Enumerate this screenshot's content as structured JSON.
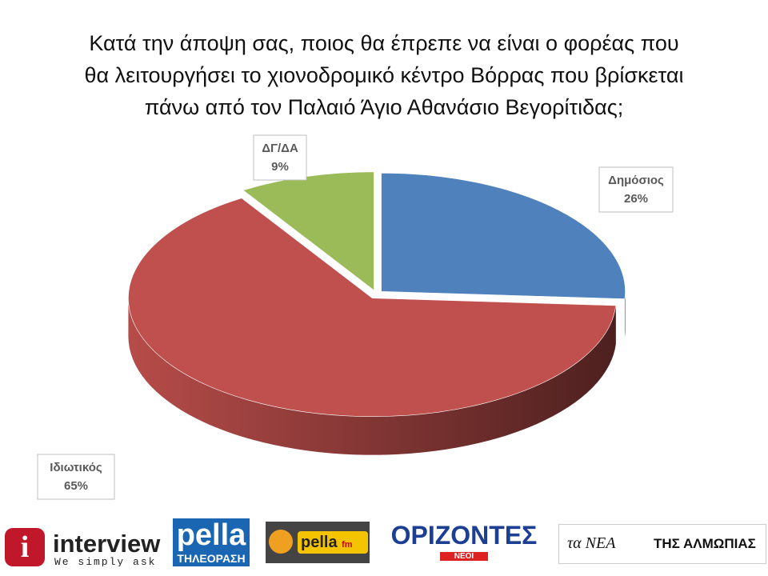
{
  "chart_data": {
    "type": "pie",
    "title": "Κατά την άποψη σας,  ποιος θα έπρεπε να είναι ο φορέας που\nθα λειτουργήσει το χιονοδρομικό κέντρο Βόρρας που βρίσκεται\nπάνω από τον Παλαιό Άγιο Αθανάσιο Βεγορίτιδας;",
    "categories": [
      "Δημόσιος",
      "Ιδιωτικός",
      "ΔΓ/ΔΑ"
    ],
    "values": [
      26,
      65,
      9
    ],
    "value_labels": [
      "26%",
      "65%",
      "9%"
    ],
    "colors": [
      "#4f81bd",
      "#c0504d",
      "#9bbb59"
    ]
  },
  "logos": {
    "interview": "interview",
    "interview_tagline": "We simply ask",
    "pella_tv": "pella",
    "pella_tv_sub": "ΤΗΛΕΟΡΑΣΗ",
    "pella_fm": "pella",
    "pella_fm_sub": "fm",
    "orizontes": "ΟΡΙΖΟΝΤΕΣ",
    "orizontes_sub": "ΝΕΟΙ",
    "nea": "τα ΝΕΑ",
    "nea_sub": "ΤΗΣ ΑΛΜΩΠΙΑΣ"
  }
}
